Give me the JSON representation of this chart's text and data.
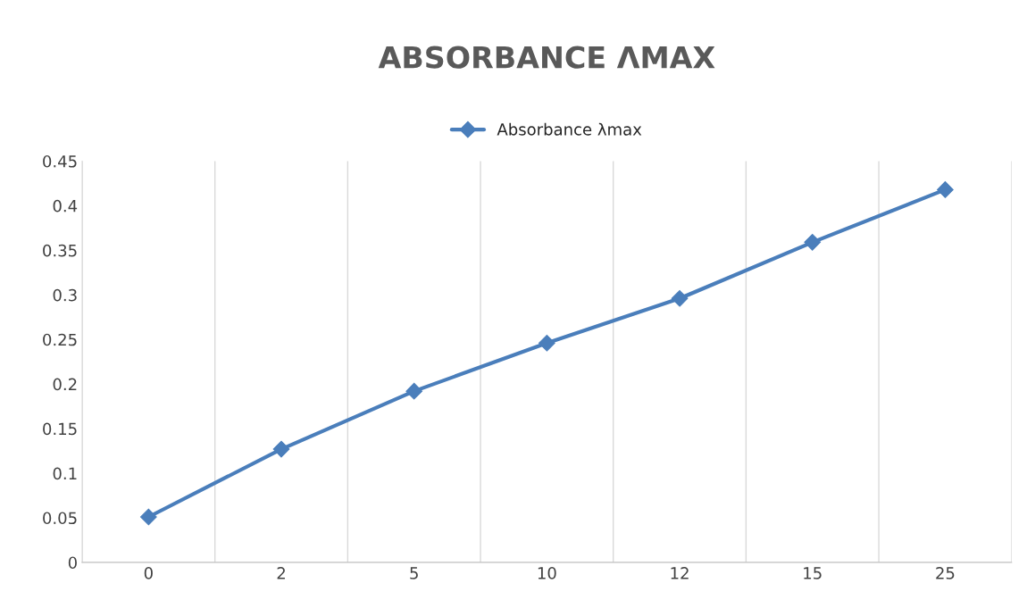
{
  "chart_data": {
    "type": "line",
    "title": "ABSORBANCE ΛMAX",
    "categories": [
      "0",
      "2",
      "5",
      "10",
      "12",
      "15",
      "25"
    ],
    "series": [
      {
        "name": "Absorbance λmax",
        "color": "#4a7ebb",
        "values": [
          0.051,
          0.127,
          0.192,
          0.246,
          0.296,
          0.359,
          0.418
        ]
      }
    ],
    "ylim": [
      0,
      0.45
    ],
    "yticks": [
      0,
      0.05,
      0.1,
      0.15,
      0.2,
      0.25,
      0.3,
      0.35,
      0.4,
      0.45
    ],
    "grid": "x",
    "legend": "top",
    "marker": "diamond",
    "line_style": "solid"
  }
}
